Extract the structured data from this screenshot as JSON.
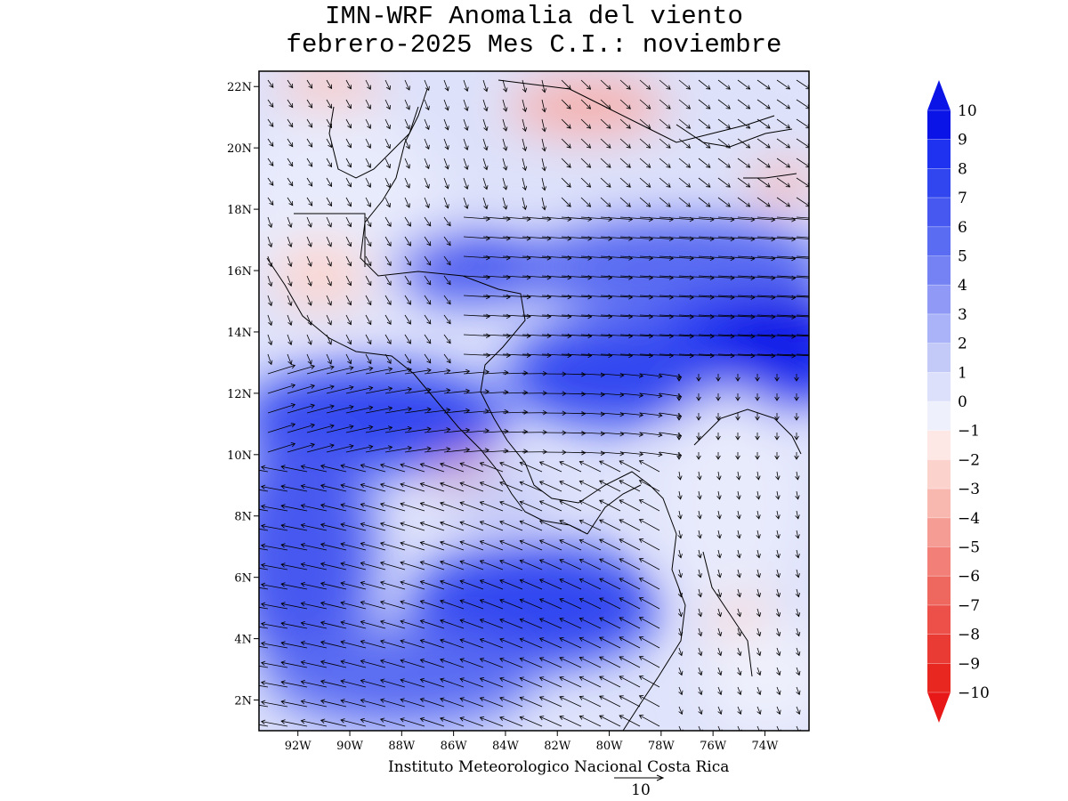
{
  "title_line1": "IMN-WRF Anomalia del viento",
  "title_line2": "febrero-2025 Mes C.I.: noviembre",
  "credit": "Instituto Meteorologico Nacional Costa Rica",
  "reference_vector_label": "10",
  "lat_labels": [
    "22N",
    "20N",
    "18N",
    "16N",
    "14N",
    "12N",
    "10N",
    "8N",
    "6N",
    "4N",
    "2N"
  ],
  "lon_labels": [
    "92W",
    "90W",
    "88W",
    "86W",
    "84W",
    "82W",
    "80W",
    "78W",
    "76W",
    "74W"
  ],
  "colorbar": {
    "labels": [
      "10",
      "9",
      "8",
      "7",
      "6",
      "5",
      "4",
      "3",
      "2",
      "1",
      "0",
      "−1",
      "−2",
      "−3",
      "−4",
      "−5",
      "−6",
      "−7",
      "−8",
      "−9",
      "−10"
    ],
    "colors": [
      "#0a14e6",
      "#1e32f0",
      "#3246f0",
      "#4658f0",
      "#5a6cf2",
      "#7482f4",
      "#909af6",
      "#aab2f8",
      "#c4caf8",
      "#dde0fa",
      "#eef0fc",
      "#fde8e6",
      "#fbd2cc",
      "#f8b8b0",
      "#f59c94",
      "#f28078",
      "#ef6860",
      "#ec5048",
      "#ea3a34",
      "#e82820"
    ],
    "top_arrow": "#0a14e6",
    "bottom_arrow": "#e81818"
  },
  "chart_data": {
    "type": "heatmap",
    "title": "IMN-WRF Anomalia del viento febrero-2025 Mes C.I.: noviembre",
    "xlabel": "",
    "ylabel": "",
    "lon_range": [
      -93.5,
      -72.3
    ],
    "lat_range": [
      1.0,
      22.5
    ],
    "lon_ticks": [
      -92,
      -90,
      -88,
      -86,
      -84,
      -82,
      -80,
      -78,
      -76,
      -74
    ],
    "lat_ticks": [
      22,
      20,
      18,
      16,
      14,
      12,
      10,
      8,
      6,
      4,
      2
    ],
    "value_range": [
      -10,
      10
    ],
    "units": "",
    "reference_vector": 10,
    "legend": "right-vertical-colorbar"
  }
}
